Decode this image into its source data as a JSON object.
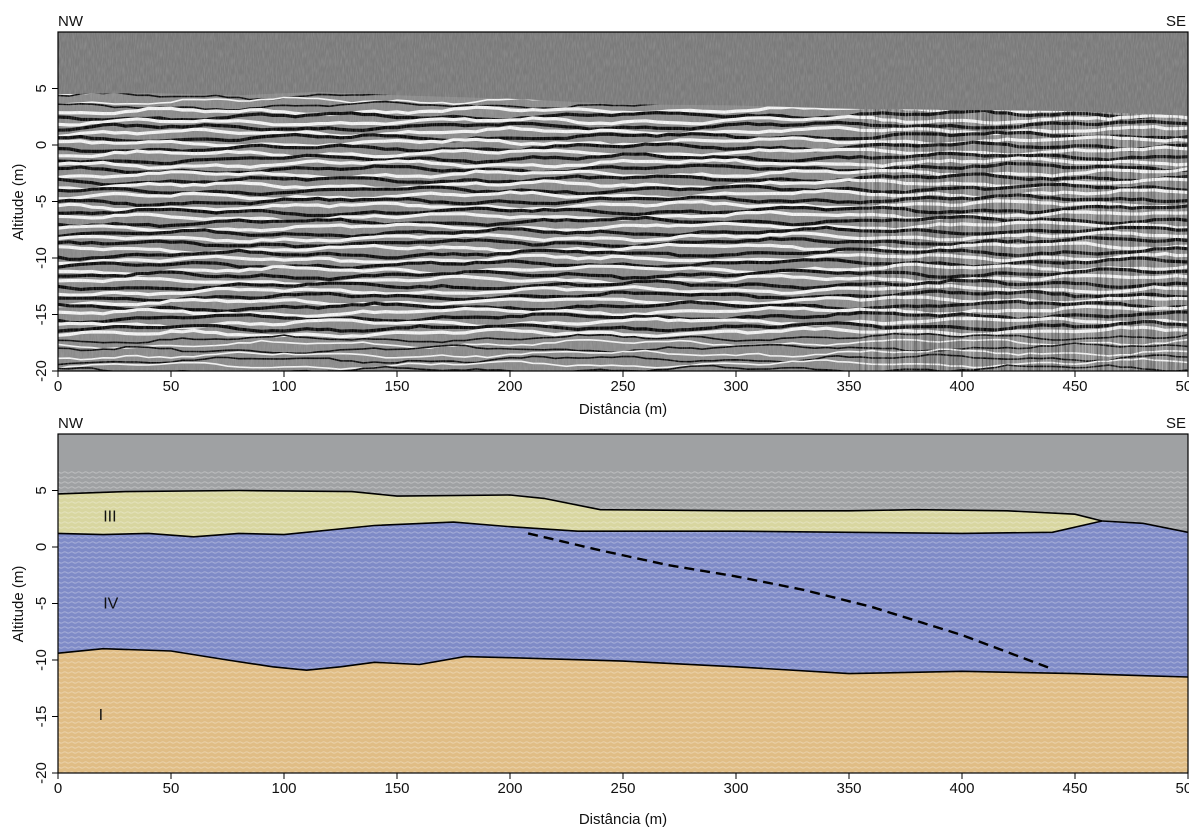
{
  "chart_data": [
    {
      "type": "heatmap",
      "title": "",
      "xlabel": "Distância (m)",
      "ylabel": "Altitude (m)",
      "xlim": [
        0,
        500
      ],
      "ylim": [
        -20,
        10
      ],
      "xticks": [
        0,
        50,
        100,
        150,
        200,
        250,
        300,
        350,
        400,
        450,
        500
      ],
      "yticks": [
        5,
        0,
        -5,
        -10,
        -15,
        -20
      ],
      "corner_left": "NW",
      "corner_right": "SE",
      "air_color": "#7a7a7a",
      "surface_profile": {
        "x": [
          0,
          40,
          80,
          115,
          150,
          200,
          250,
          300,
          350,
          400,
          450,
          500
        ],
        "y": [
          4.5,
          4.6,
          4.4,
          4.7,
          4.4,
          4.1,
          3.6,
          3.5,
          3.2,
          3.1,
          3.0,
          2.6
        ]
      },
      "strong_reflection_end_x": 355
    },
    {
      "type": "area",
      "title": "",
      "xlabel": "Distância (m)",
      "ylabel": "Altitude (m)",
      "xlim": [
        0,
        500
      ],
      "ylim": [
        -20,
        10
      ],
      "xticks": [
        0,
        50,
        100,
        150,
        200,
        250,
        300,
        350,
        400,
        450,
        500
      ],
      "yticks": [
        5,
        0,
        -5,
        -10,
        -15,
        -20
      ],
      "corner_left": "NW",
      "corner_right": "SE",
      "colors": {
        "air": "#9fa1a3",
        "unit_III": "#d8d6a0",
        "unit_IV": "#7f8bc7",
        "unit_I": "#e0bd85"
      },
      "units": [
        {
          "name": "III",
          "label_x": 20,
          "label_y": 2.8
        },
        {
          "name": "IV",
          "label_x": 20,
          "label_y": -4.9
        },
        {
          "name": "I",
          "label_x": 18,
          "label_y": -14.8
        }
      ],
      "boundaries": {
        "top_III": {
          "x": [
            0,
            30,
            80,
            130,
            150,
            200,
            215,
            240,
            300,
            350,
            380,
            420,
            450,
            462
          ],
          "y": [
            4.7,
            4.9,
            5.0,
            4.9,
            4.5,
            4.6,
            4.3,
            3.3,
            3.2,
            3.2,
            3.3,
            3.2,
            2.9,
            2.3
          ]
        },
        "top_IV": {
          "x": [
            462,
            480,
            500
          ],
          "y": [
            2.3,
            2.1,
            1.3
          ]
        },
        "base_III": {
          "x": [
            0,
            20,
            40,
            60,
            80,
            100,
            140,
            175,
            200,
            230,
            300,
            350,
            400,
            440,
            462
          ],
          "y": [
            1.2,
            1.1,
            1.2,
            0.9,
            1.2,
            1.1,
            1.9,
            2.2,
            1.8,
            1.4,
            1.4,
            1.3,
            1.2,
            1.3,
            2.3
          ]
        },
        "base_IV": {
          "x": [
            0,
            20,
            50,
            75,
            95,
            110,
            125,
            140,
            160,
            180,
            200,
            250,
            300,
            350,
            400,
            450,
            500
          ],
          "y": [
            -9.4,
            -9.0,
            -9.2,
            -10.0,
            -10.6,
            -10.9,
            -10.6,
            -10.2,
            -10.4,
            -9.7,
            -9.8,
            -10.1,
            -10.6,
            -11.2,
            -11.0,
            -11.2,
            -11.5
          ]
        },
        "dashed_internal": {
          "x": [
            208,
            240,
            270,
            300,
            330,
            360,
            400,
            440
          ],
          "y": [
            1.2,
            -0.3,
            -1.6,
            -2.6,
            -3.8,
            -5.3,
            -7.8,
            -10.8
          ]
        }
      }
    }
  ]
}
